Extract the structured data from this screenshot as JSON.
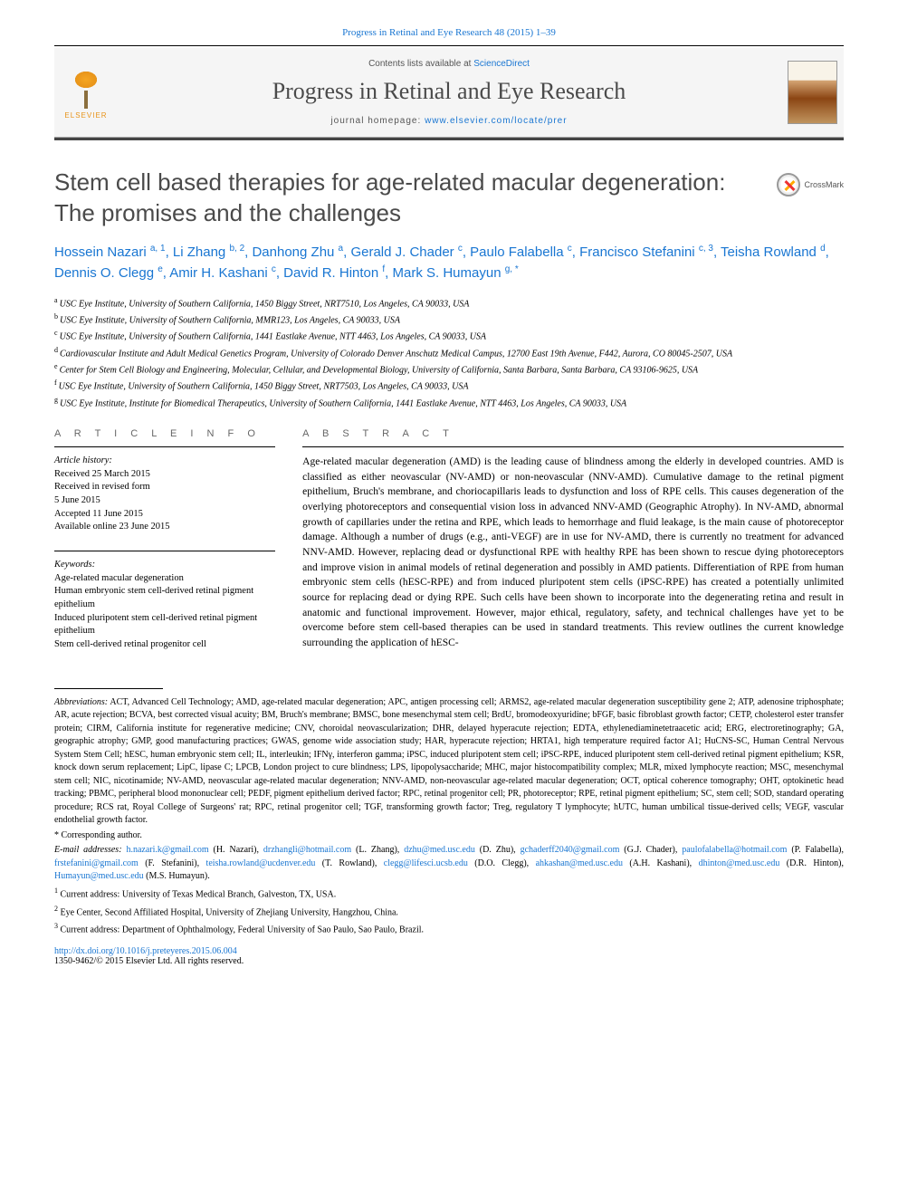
{
  "citation": "Progress in Retinal and Eye Research 48 (2015) 1–39",
  "masthead": {
    "publisher": "ELSEVIER",
    "contents_prefix": "Contents lists available at ",
    "contents_link": "ScienceDirect",
    "journal": "Progress in Retinal and Eye Research",
    "homepage_prefix": "journal homepage: ",
    "homepage_url": "www.elsevier.com/locate/prer"
  },
  "crossmark_label": "CrossMark",
  "title": "Stem cell based therapies for age-related macular degeneration: The promises and the challenges",
  "authors_html": "Hossein Nazari <sup>a, 1</sup>, Li Zhang <sup>b, 2</sup>, Danhong Zhu <sup>a</sup>, Gerald J. Chader <sup>c</sup>, Paulo Falabella <sup>c</sup>, Francisco Stefanini <sup>c, 3</sup>, Teisha Rowland <sup>d</sup>, Dennis O. Clegg <sup>e</sup>, Amir H. Kashani <sup>c</sup>, David R. Hinton <sup>f</sup>, Mark S. Humayun <sup>g, *</sup>",
  "affiliations": [
    {
      "sup": "a",
      "text": "USC Eye Institute, University of Southern California, 1450 Biggy Street, NRT7510, Los Angeles, CA 90033, USA"
    },
    {
      "sup": "b",
      "text": "USC Eye Institute, University of Southern California, MMR123, Los Angeles, CA 90033, USA"
    },
    {
      "sup": "c",
      "text": "USC Eye Institute, University of Southern California, 1441 Eastlake Avenue, NTT 4463, Los Angeles, CA 90033, USA"
    },
    {
      "sup": "d",
      "text": "Cardiovascular Institute and Adult Medical Genetics Program, University of Colorado Denver Anschutz Medical Campus, 12700 East 19th Avenue, F442, Aurora, CO 80045-2507, USA"
    },
    {
      "sup": "e",
      "text": "Center for Stem Cell Biology and Engineering, Molecular, Cellular, and Developmental Biology, University of California, Santa Barbara, Santa Barbara, CA 93106-9625, USA"
    },
    {
      "sup": "f",
      "text": "USC Eye Institute, University of Southern California, 1450 Biggy Street, NRT7503, Los Angeles, CA 90033, USA"
    },
    {
      "sup": "g",
      "text": "USC Eye Institute, Institute for Biomedical Therapeutics, University of Southern California, 1441 Eastlake Avenue, NTT 4463, Los Angeles, CA 90033, USA"
    }
  ],
  "labels": {
    "article_info": "A R T I C L E   I N F O",
    "abstract": "A B S T R A C T",
    "history": "Article history:",
    "keywords": "Keywords:"
  },
  "history": [
    "Received 25 March 2015",
    "Received in revised form",
    "5 June 2015",
    "Accepted 11 June 2015",
    "Available online 23 June 2015"
  ],
  "keywords": [
    "Age-related macular degeneration",
    "Human embryonic stem cell-derived retinal pigment epithelium",
    "Induced pluripotent stem cell-derived retinal pigment epithelium",
    "Stem cell-derived retinal progenitor cell"
  ],
  "abstract": "Age-related macular degeneration (AMD) is the leading cause of blindness among the elderly in developed countries. AMD is classified as either neovascular (NV-AMD) or non-neovascular (NNV-AMD). Cumulative damage to the retinal pigment epithelium, Bruch's membrane, and choriocapillaris leads to dysfunction and loss of RPE cells. This causes degeneration of the overlying photoreceptors and consequential vision loss in advanced NNV-AMD (Geographic Atrophy). In NV-AMD, abnormal growth of capillaries under the retina and RPE, which leads to hemorrhage and fluid leakage, is the main cause of photoreceptor damage. Although a number of drugs (e.g., anti-VEGF) are in use for NV-AMD, there is currently no treatment for advanced NNV-AMD. However, replacing dead or dysfunctional RPE with healthy RPE has been shown to rescue dying photoreceptors and improve vision in animal models of retinal degeneration and possibly in AMD patients. Differentiation of RPE from human embryonic stem cells (hESC-RPE) and from induced pluripotent stem cells (iPSC-RPE) has created a potentially unlimited source for replacing dead or dying RPE. Such cells have been shown to incorporate into the degenerating retina and result in anatomic and functional improvement. However, major ethical, regulatory, safety, and technical challenges have yet to be overcome before stem cell-based therapies can be used in standard treatments. This review outlines the current knowledge surrounding the application of hESC-",
  "abbreviations_label": "Abbreviations:",
  "abbreviations": " ACT, Advanced Cell Technology; AMD, age-related macular degeneration; APC, antigen processing cell; ARMS2, age-related macular degeneration susceptibility gene 2; ATP, adenosine triphosphate; AR, acute rejection; BCVA, best corrected visual acuity; BM, Bruch's membrane; BMSC, bone mesenchymal stem cell; BrdU, bromodeoxyuridine; bFGF, basic fibroblast growth factor; CETP, cholesterol ester transfer protein; CIRM, California institute for regenerative medicine; CNV, choroidal neovascularization; DHR, delayed hyperacute rejection; EDTA, ethylenediaminetetraacetic acid; ERG, electroretinography; GA, geographic atrophy; GMP, good manufacturing practices; GWAS, genome wide association study; HAR, hyperacute rejection; HRTA1, high temperature required factor A1; HuCNS-SC, Human Central Nervous System Stem Cell; hESC, human embryonic stem cell; IL, interleukin; IFNγ, interferon gamma; iPSC, induced pluripotent stem cell; iPSC-RPE, induced pluripotent stem cell-derived retinal pigment epithelium; KSR, knock down serum replacement; LipC, lipase C; LPCB, London project to cure blindness; LPS, lipopolysaccharide; MHC, major histocompatibility complex; MLR, mixed lymphocyte reaction; MSC, mesenchymal stem cell; NIC, nicotinamide; NV-AMD, neovascular age-related macular degeneration; NNV-AMD, non-neovascular age-related macular degeneration; OCT, optical coherence tomography; OHT, optokinetic head tracking; PBMC, peripheral blood mononuclear cell; PEDF, pigment epithelium derived factor; RPC, retinal progenitor cell; PR, photoreceptor; RPE, retinal pigment epithelium; SC, stem cell; SOD, standard operating procedure; RCS rat, Royal College of Surgeons' rat; RPC, retinal progenitor cell; TGF, transforming growth factor; Treg, regulatory T lymphocyte; hUTC, human umbilical tissue-derived cells; VEGF, vascular endothelial growth factor.",
  "corresponding": "* Corresponding author.",
  "emails_label": "E-mail addresses:",
  "emails": [
    {
      "addr": "h.nazari.k@gmail.com",
      "who": "(H. Nazari)"
    },
    {
      "addr": "drzhangli@hotmail.com",
      "who": "(L. Zhang)"
    },
    {
      "addr": "dzhu@med.usc.edu",
      "who": "(D. Zhu)"
    },
    {
      "addr": "gchaderff2040@gmail.com",
      "who": "(G.J. Chader)"
    },
    {
      "addr": "paulofalabella@hotmail.com",
      "who": "(P. Falabella)"
    },
    {
      "addr": "frstefanini@gmail.com",
      "who": "(F. Stefanini)"
    },
    {
      "addr": "teisha.rowland@ucdenver.edu",
      "who": "(T. Rowland)"
    },
    {
      "addr": "clegg@lifesci.ucsb.edu",
      "who": "(D.O. Clegg)"
    },
    {
      "addr": "ahkashan@med.usc.edu",
      "who": "(A.H. Kashani)"
    },
    {
      "addr": "dhinton@med.usc.edu",
      "who": "(D.R. Hinton)"
    },
    {
      "addr": "Humayun@med.usc.edu",
      "who": "(M.S. Humayun)."
    }
  ],
  "current_addresses": [
    {
      "sup": "1",
      "text": "Current address: University of Texas Medical Branch, Galveston, TX, USA."
    },
    {
      "sup": "2",
      "text": "Eye Center, Second Affiliated Hospital, University of Zhejiang University, Hangzhou, China."
    },
    {
      "sup": "3",
      "text": "Current address: Department of Ophthalmology, Federal University of Sao Paulo, Sao Paulo, Brazil."
    }
  ],
  "doi": "http://dx.doi.org/10.1016/j.preteyeres.2015.06.004",
  "copyright": "1350-9462/© 2015 Elsevier Ltd. All rights reserved."
}
